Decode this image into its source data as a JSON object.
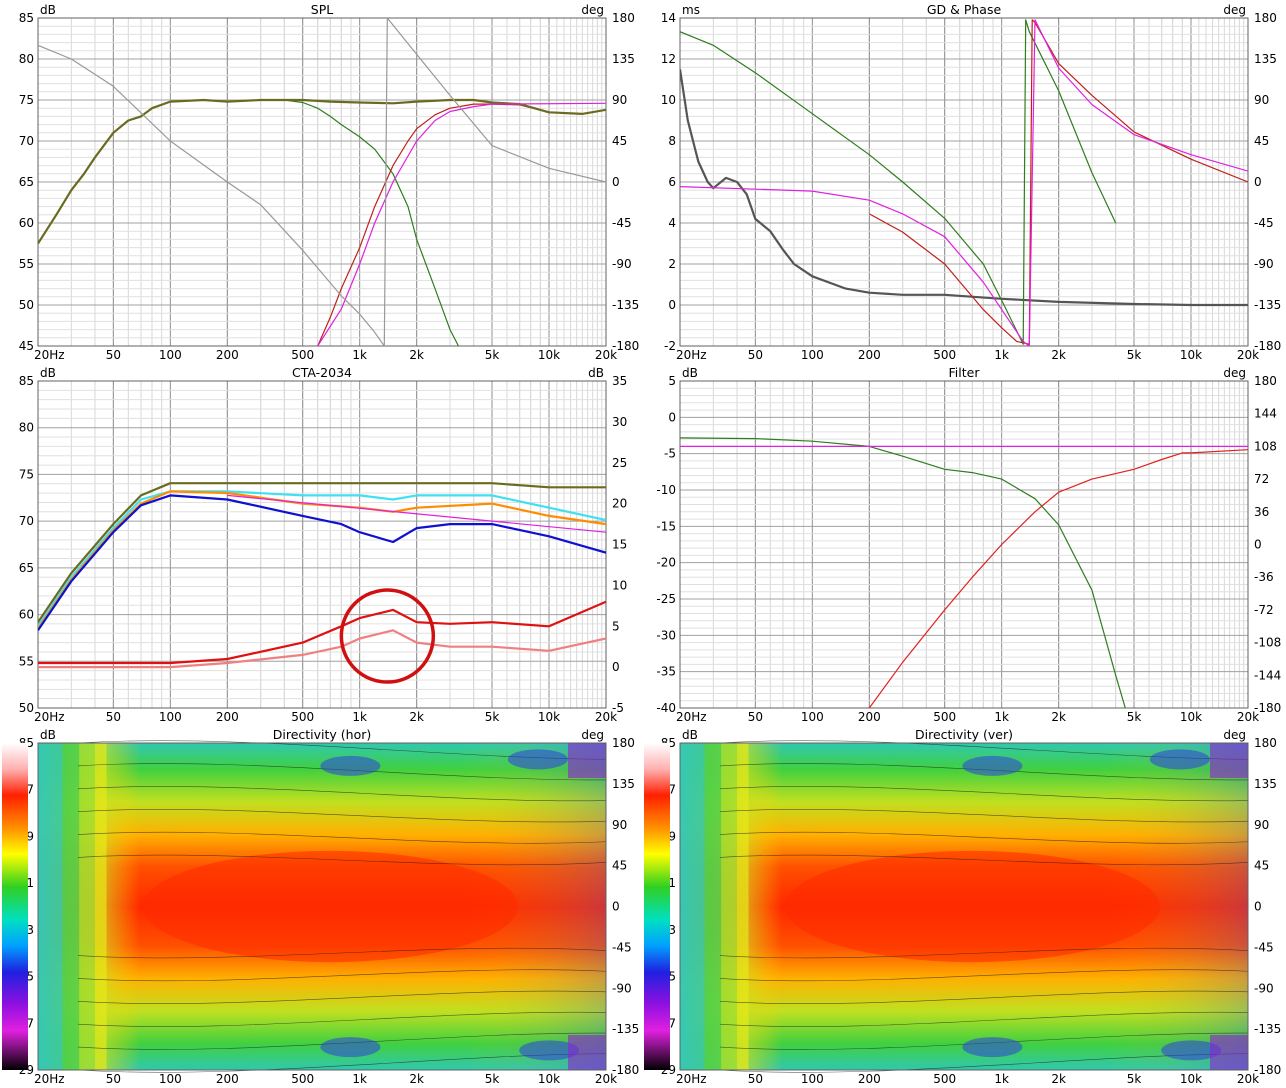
{
  "chart_data": [
    {
      "type": "line",
      "title": "SPL",
      "ylabel": "dB",
      "y2label": "deg",
      "x_ticks": [
        "20Hz",
        "50",
        "100",
        "200",
        "500",
        "1k",
        "2k",
        "5k",
        "10k",
        "20k"
      ],
      "y_ticks": [
        "85",
        "80",
        "75",
        "70",
        "65",
        "60",
        "55",
        "50",
        "45"
      ],
      "y2_ticks": [
        "180",
        "135",
        "90",
        "45",
        "0",
        "-45",
        "-90",
        "-135",
        "-180"
      ],
      "ylim": [
        45,
        85
      ],
      "y2lim": [
        -180,
        180
      ],
      "series": [
        {
          "name": "woofer",
          "color": "#2e7d1e",
          "axis": "y",
          "x": [
            20,
            25,
            30,
            35,
            40,
            50,
            60,
            70,
            80,
            100,
            150,
            200,
            300,
            400,
            500,
            600,
            700,
            800,
            1000,
            1200,
            1500,
            1800,
            2000,
            2500,
            3000,
            3500
          ],
          "y": [
            57.5,
            61,
            64,
            66,
            68,
            71,
            72.5,
            73,
            74,
            74.8,
            75,
            74.8,
            75,
            75,
            74.7,
            74,
            73,
            72,
            70.5,
            69,
            66,
            62,
            58,
            52,
            47,
            44
          ]
        },
        {
          "name": "tweeter",
          "color": "#c0201c",
          "axis": "y",
          "x": [
            600,
            700,
            800,
            1000,
            1200,
            1500,
            1800,
            2000,
            2500,
            3000,
            4000,
            5000,
            7000,
            10000,
            15000,
            20000
          ],
          "y": [
            45,
            48.5,
            52,
            57,
            62,
            67,
            70,
            71.5,
            73.2,
            74,
            74.5,
            74.5,
            74.4,
            73.5,
            73.3,
            73.8
          ]
        },
        {
          "name": "summed",
          "color": "#6b6b20",
          "axis": "y",
          "x": [
            20,
            25,
            30,
            35,
            40,
            50,
            60,
            70,
            80,
            100,
            150,
            200,
            300,
            500,
            700,
            1000,
            1500,
            2000,
            3000,
            4000,
            5000,
            7000,
            10000,
            15000,
            20000
          ],
          "y": [
            57.5,
            61,
            64,
            66,
            68,
            71,
            72.5,
            73,
            74,
            74.8,
            75,
            74.8,
            75,
            75,
            74.8,
            74.7,
            74.6,
            74.8,
            75,
            75,
            74.7,
            74.5,
            73.5,
            73.3,
            73.8
          ]
        },
        {
          "name": "target",
          "color": "#e020e0",
          "axis": "y",
          "x": [
            600,
            800,
            1000,
            1200,
            1500,
            2000,
            2500,
            3000,
            4000,
            5000,
            20000
          ],
          "y": [
            45,
            49.5,
            55,
            60,
            65,
            70,
            72.5,
            73.6,
            74.2,
            74.5,
            74.6
          ]
        },
        {
          "name": "phase",
          "color": "#999999",
          "axis": "y2",
          "x": [
            20,
            30,
            50,
            100,
            200,
            300,
            500,
            800,
            1000,
            1200,
            1350,
            1400,
            2000,
            3000,
            5000,
            10000,
            20000
          ],
          "y2": [
            150,
            135,
            105,
            45,
            0,
            -25,
            -75,
            -125,
            -145,
            -165,
            -180,
            180,
            140,
            95,
            40,
            15,
            0
          ]
        }
      ]
    },
    {
      "type": "line",
      "title": "GD & Phase",
      "ylabel": "ms",
      "y2label": "deg",
      "x_ticks": [
        "20Hz",
        "50",
        "100",
        "200",
        "500",
        "1k",
        "2k",
        "5k",
        "10k",
        "20k"
      ],
      "y_ticks": [
        "14",
        "12",
        "10",
        "8",
        "6",
        "4",
        "2",
        "0",
        "-2"
      ],
      "y2_ticks": [
        "180",
        "135",
        "90",
        "45",
        "0",
        "-45",
        "-90",
        "-135",
        "-180"
      ],
      "ylim": [
        -2,
        14
      ],
      "y2lim": [
        -180,
        180
      ],
      "series": [
        {
          "name": "group delay",
          "color": "#555555",
          "axis": "y",
          "x": [
            20,
            22,
            25,
            28,
            30,
            35,
            40,
            45,
            50,
            60,
            70,
            80,
            100,
            150,
            200,
            300,
            500,
            1000,
            2000,
            5000,
            10000,
            20000
          ],
          "y": [
            11.5,
            9,
            7,
            6,
            5.7,
            6.2,
            6,
            5.4,
            4.2,
            3.6,
            2.7,
            2,
            1.4,
            0.8,
            0.6,
            0.5,
            0.5,
            0.3,
            0.15,
            0.05,
            0,
            0
          ]
        },
        {
          "name": "woofer phase",
          "color": "#2e7d1e",
          "axis": "y2",
          "x": [
            20,
            30,
            50,
            100,
            200,
            300,
            500,
            800,
            1000,
            1300,
            1340,
            1400,
            2000,
            3000,
            4000
          ],
          "y2": [
            165,
            150,
            120,
            75,
            30,
            0,
            -40,
            -90,
            -130,
            -178,
            178,
            165,
            100,
            10,
            -45
          ]
        },
        {
          "name": "tweeter phase",
          "color": "#c0201c",
          "axis": "y2",
          "x": [
            200,
            300,
            500,
            800,
            1000,
            1200,
            1400,
            1450,
            1500,
            2000,
            3000,
            5000,
            10000,
            20000
          ],
          "y2": [
            -35,
            -55,
            -90,
            -140,
            -160,
            -175,
            -178,
            178,
            175,
            130,
            95,
            55,
            25,
            0
          ]
        },
        {
          "name": "target phase",
          "color": "#e020e0",
          "axis": "y2",
          "x": [
            20,
            100,
            200,
            300,
            500,
            800,
            1000,
            1300,
            1400,
            1500,
            2000,
            3000,
            5000,
            10000,
            20000
          ],
          "y2": [
            -5,
            -10,
            -20,
            -35,
            -60,
            -110,
            -140,
            -175,
            -180,
            178,
            125,
            85,
            52,
            30,
            12
          ]
        }
      ]
    },
    {
      "type": "line",
      "title": "CTA-2034",
      "ylabel": "dB",
      "y2label": "dB",
      "x_ticks": [
        "20Hz",
        "50",
        "100",
        "200",
        "500",
        "1k",
        "2k",
        "5k",
        "10k",
        "20k"
      ],
      "y_ticks": [
        "85",
        "80",
        "75",
        "70",
        "65",
        "60",
        "55",
        "50"
      ],
      "y2_ticks": [
        "35",
        "30",
        "25",
        "20",
        "15",
        "10",
        "5",
        "0",
        "-5"
      ],
      "ylim": [
        47.5,
        87.5
      ],
      "y2lim": [
        -5,
        35
      ],
      "series": [
        {
          "name": "on axis",
          "color": "#6b6b20",
          "axis": "y",
          "x": [
            20,
            30,
            50,
            70,
            100,
            200,
            500,
            1000,
            2000,
            5000,
            10000,
            20000
          ],
          "y": [
            58,
            64,
            70,
            73.5,
            75,
            75,
            75,
            75,
            75,
            75,
            74.5,
            74.5
          ]
        },
        {
          "name": "listening window",
          "color": "#40e0f0",
          "axis": "y",
          "x": [
            20,
            30,
            50,
            70,
            100,
            200,
            500,
            1000,
            1500,
            2000,
            5000,
            10000,
            20000
          ],
          "y": [
            57.5,
            63.5,
            69.5,
            73,
            74,
            74,
            73.5,
            73.5,
            73,
            73.5,
            73.5,
            72,
            70.5
          ]
        },
        {
          "name": "early reflections",
          "color": "#ff8c00",
          "axis": "y",
          "x": [
            20,
            30,
            50,
            70,
            100,
            200,
            500,
            1000,
            1500,
            2000,
            5000,
            10000,
            20000
          ],
          "y": [
            57.2,
            63.2,
            69.2,
            72.5,
            74,
            73.8,
            72.5,
            72,
            71.5,
            72,
            72.5,
            71,
            70
          ]
        },
        {
          "name": "sound power",
          "color": "#1010d0",
          "axis": "y",
          "x": [
            20,
            30,
            50,
            70,
            100,
            200,
            500,
            800,
            1000,
            1500,
            2000,
            3000,
            5000,
            10000,
            20000
          ],
          "y": [
            57,
            63,
            69,
            72.3,
            73.5,
            73,
            71,
            70,
            69,
            67.8,
            69.5,
            70,
            70,
            68.5,
            66.5
          ]
        },
        {
          "name": "slope",
          "color": "#e020e0",
          "axis": "y",
          "x": [
            200,
            20000
          ],
          "y": [
            73.5,
            69
          ]
        },
        {
          "name": "ER DI",
          "color": "#e01010",
          "axis": "y2",
          "x": [
            20,
            50,
            100,
            200,
            500,
            800,
            1000,
            1500,
            2000,
            3000,
            5000,
            10000,
            20000
          ],
          "y2": [
            0.5,
            0.5,
            0.5,
            1,
            3,
            5,
            6,
            7,
            5.5,
            5.3,
            5.5,
            5,
            8
          ]
        },
        {
          "name": "SP DI",
          "color": "#f08080",
          "axis": "y2",
          "x": [
            20,
            50,
            100,
            200,
            500,
            800,
            1000,
            1500,
            2000,
            3000,
            5000,
            10000,
            20000
          ],
          "y2": [
            0,
            0,
            0,
            0.5,
            1.5,
            2.5,
            3.5,
            4.5,
            3,
            2.5,
            2.5,
            2,
            3.5
          ]
        }
      ],
      "annotation": "red circle around 1k-2k"
    },
    {
      "type": "line",
      "title": "Filter",
      "ylabel": "dB",
      "y2label": "deg",
      "x_ticks": [
        "20Hz",
        "50",
        "100",
        "200",
        "500",
        "1k",
        "2k",
        "5k",
        "10k",
        "20k"
      ],
      "y_ticks": [
        "5",
        "0",
        "-5",
        "-10",
        "-15",
        "-20",
        "-25",
        "-30",
        "-35",
        "-40"
      ],
      "y2_ticks": [
        "180",
        "144",
        "108",
        "72",
        "36",
        "0",
        "-36",
        "-72",
        "-108",
        "-144",
        "-180"
      ],
      "ylim": [
        -40,
        10
      ],
      "y2lim": [
        -180,
        180
      ],
      "series": [
        {
          "name": "lowpass",
          "color": "#2e7d1e",
          "axis": "y",
          "x": [
            20,
            50,
            100,
            200,
            300,
            500,
            700,
            1000,
            1500,
            2000,
            3000,
            4000,
            4500
          ],
          "y": [
            1.3,
            1.2,
            0.8,
            0,
            -1.5,
            -3.5,
            -4,
            -5,
            -8,
            -12,
            -22,
            -35,
            -40
          ]
        },
        {
          "name": "highpass",
          "color": "#e02020",
          "axis": "y",
          "x": [
            200,
            300,
            500,
            700,
            1000,
            1500,
            2000,
            3000,
            5000,
            7000,
            9000,
            10000,
            20000
          ],
          "y": [
            -40,
            -33,
            -25,
            -20,
            -15,
            -10,
            -7,
            -5,
            -3.5,
            -2,
            -1,
            -1,
            -0.5
          ]
        },
        {
          "name": "flat",
          "color": "#e020e0",
          "axis": "y",
          "x": [
            20,
            20000
          ],
          "y": [
            0,
            0
          ]
        }
      ]
    },
    {
      "type": "heatmap",
      "title": "Directivity (hor)",
      "ylabel": "dB",
      "y2label": "deg",
      "colorbar_ticks": [
        "85",
        "77",
        "69",
        "61",
        "53",
        "45",
        "37",
        "29"
      ],
      "y2_ticks": [
        "180",
        "135",
        "90",
        "45",
        "0",
        "-45",
        "-90",
        "-135",
        "-180"
      ],
      "x_ticks": [
        "20Hz",
        "50",
        "100",
        "200",
        "500",
        "1k",
        "2k",
        "5k",
        "10k",
        "20k"
      ],
      "range_db": [
        29,
        85
      ]
    },
    {
      "type": "heatmap",
      "title": "Directivity (ver)",
      "ylabel": "dB",
      "y2label": "deg",
      "colorbar_ticks": [
        "85",
        "77",
        "69",
        "61",
        "53",
        "45",
        "37",
        "29"
      ],
      "y2_ticks": [
        "180",
        "135",
        "90",
        "45",
        "0",
        "-45",
        "-90",
        "-135",
        "-180"
      ],
      "x_ticks": [
        "20Hz",
        "50",
        "100",
        "200",
        "500",
        "1k",
        "2k",
        "5k",
        "10k",
        "20k"
      ],
      "range_db": [
        29,
        85
      ]
    }
  ]
}
